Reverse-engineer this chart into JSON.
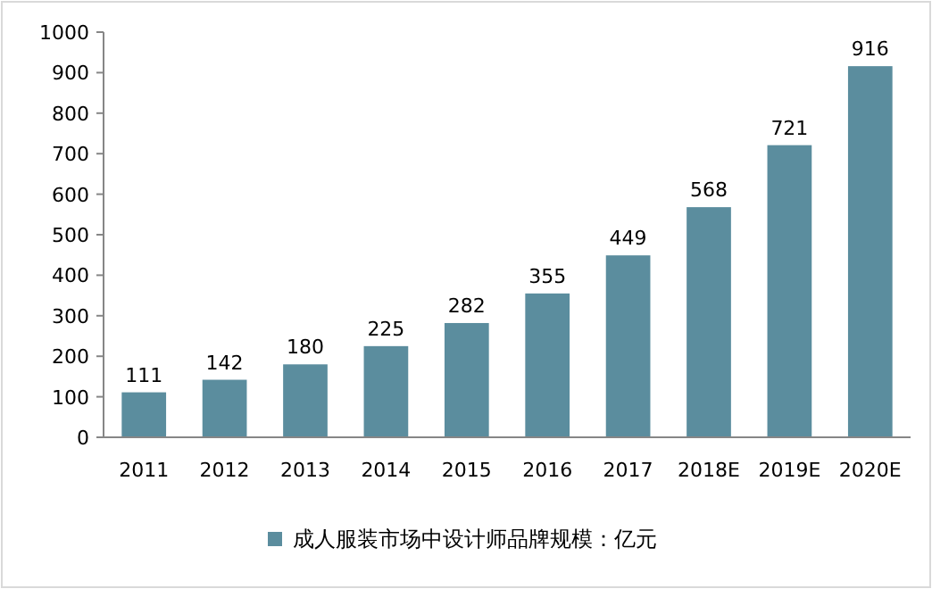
{
  "chart_data": {
    "type": "bar",
    "categories": [
      "2011",
      "2012",
      "2013",
      "2014",
      "2015",
      "2016",
      "2017",
      "2018E",
      "2019E",
      "2020E"
    ],
    "series": [
      {
        "name": "成人服装市场中设计师品牌规模：亿元",
        "color": "#5b8d9e",
        "values": [
          111,
          142,
          180,
          225,
          282,
          355,
          449,
          568,
          721,
          916
        ]
      }
    ],
    "ylim": [
      0,
      1000
    ],
    "yticks": [
      0,
      100,
      200,
      300,
      400,
      500,
      600,
      700,
      800,
      900,
      1000
    ],
    "data_labels": true,
    "legend": "bottom",
    "grid": false
  }
}
